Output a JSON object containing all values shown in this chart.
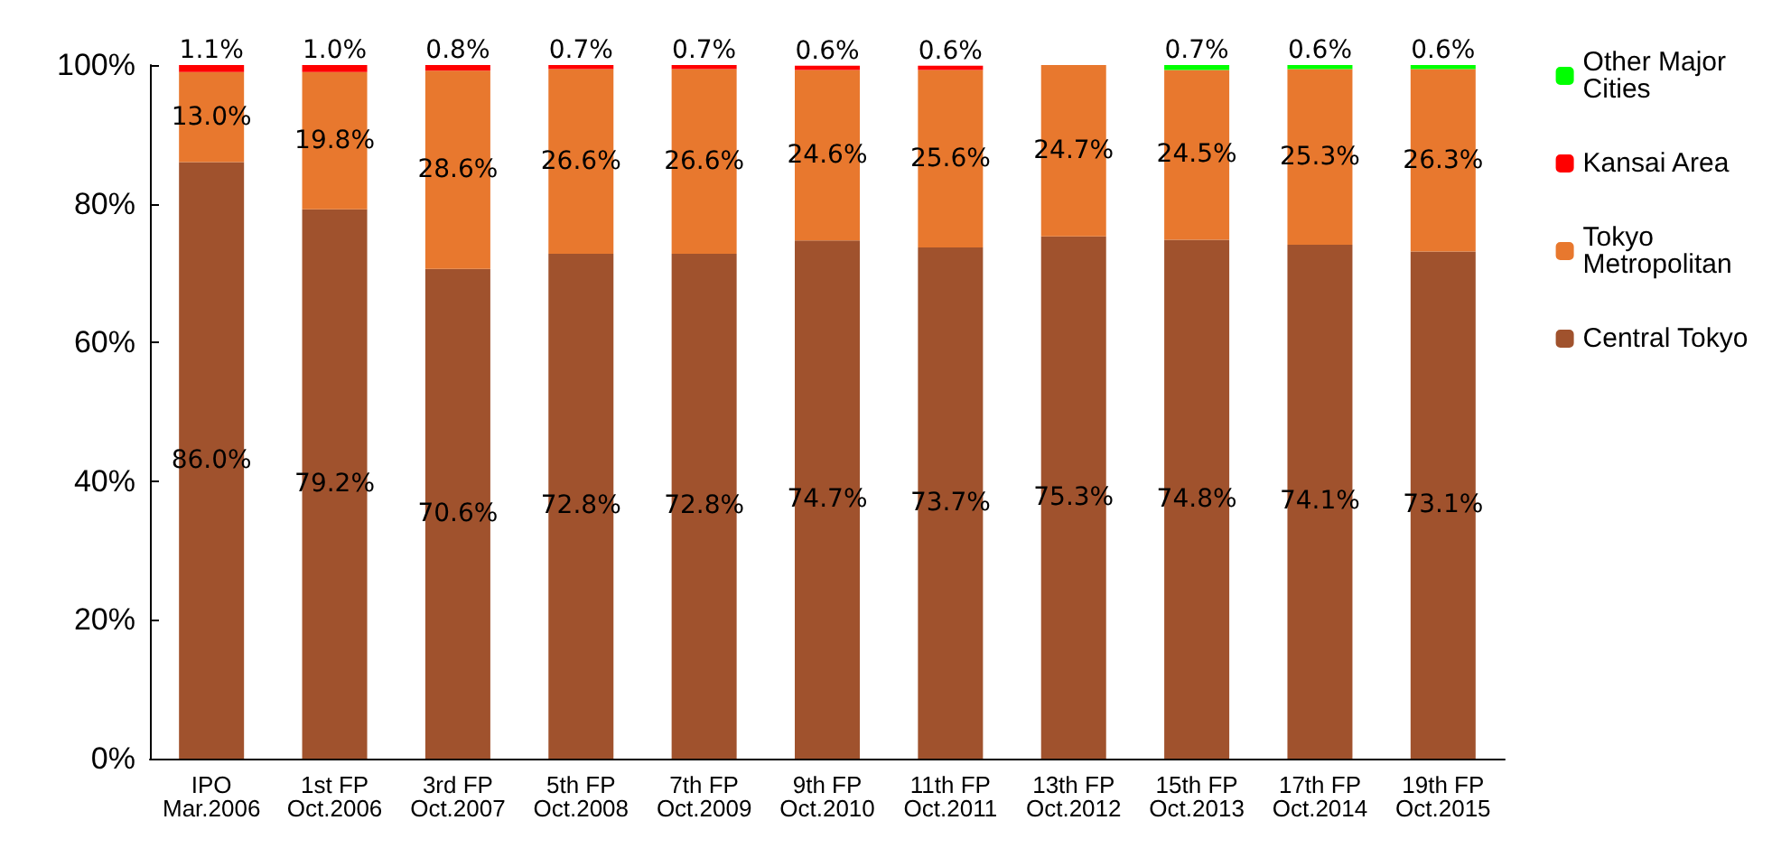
{
  "chart_data": {
    "type": "bar",
    "stacked": true,
    "legend": "right",
    "grid": false,
    "categories": [
      "IPO\nMar.2006",
      "1st FP\nOct.2006",
      "3rd FP\nOct.2007",
      "5th FP\nOct.2008",
      "7th FP\nOct.2009",
      "9th FP\nOct.2010",
      "11th FP\nOct.2011",
      "13th FP\nOct.2012",
      "15th FP\nOct.2013",
      "17th FP\nOct.2014",
      "19th FP\nOct.2015"
    ],
    "ylim": [
      0,
      100
    ],
    "yticks": [
      {
        "value": 0,
        "label": "0%"
      },
      {
        "value": 20,
        "label": "20%"
      },
      {
        "value": 40,
        "label": "40%"
      },
      {
        "value": 60,
        "label": "60%"
      },
      {
        "value": 80,
        "label": "80%"
      },
      {
        "value": 100,
        "label": "100%"
      }
    ],
    "series": [
      {
        "name": "Central Tokyo",
        "color": "#a0522d",
        "values": [
          86.0,
          79.2,
          70.6,
          72.8,
          72.8,
          74.7,
          73.7,
          75.3,
          74.8,
          74.1,
          73.1
        ],
        "value_labels": [
          "86.0%",
          "79.2%",
          "70.6%",
          "72.8%",
          "72.8%",
          "74.7%",
          "73.7%",
          "75.3%",
          "74.8%",
          "74.1%",
          "73.1%"
        ]
      },
      {
        "name": "Tokyo Metropolitan",
        "color": "#e8782e",
        "values": [
          13.0,
          19.8,
          28.6,
          26.6,
          26.6,
          24.6,
          25.6,
          24.7,
          24.5,
          25.3,
          26.3
        ],
        "value_labels": [
          "13.0%",
          "19.8%",
          "28.6%",
          "26.6%",
          "26.6%",
          "24.6%",
          "25.6%",
          "24.7%",
          "24.5%",
          "25.3%",
          "26.3%"
        ]
      },
      {
        "name": "Kansai Area",
        "color": "#ff0000",
        "values": [
          1.1,
          1.0,
          0.8,
          0.7,
          0.7,
          0.6,
          0.6,
          null,
          null,
          null,
          null
        ],
        "value_labels": [
          "1.1%",
          "1.0%",
          "0.8%",
          "0.7%",
          "0.7%",
          "0.6%",
          "0.6%",
          null,
          null,
          null,
          null
        ]
      },
      {
        "name": "Other Major Cities",
        "color": "#00ff00",
        "values": [
          null,
          null,
          null,
          null,
          null,
          null,
          null,
          null,
          0.7,
          0.6,
          0.6
        ],
        "value_labels": [
          null,
          null,
          null,
          null,
          null,
          null,
          null,
          null,
          "0.7%",
          "0.6%",
          "0.6%"
        ]
      }
    ]
  }
}
